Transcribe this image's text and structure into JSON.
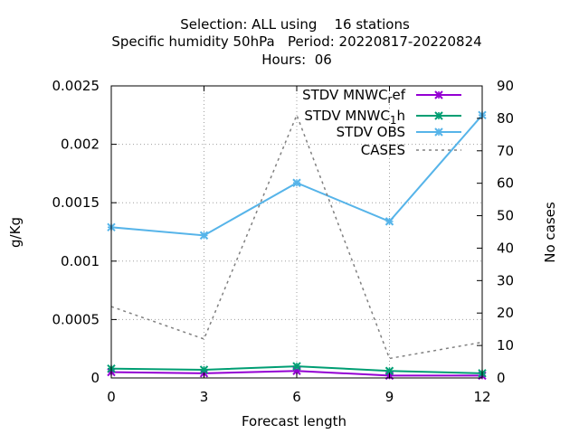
{
  "chart_data": {
    "type": "line",
    "title_lines": [
      "Selection: ALL using    16 stations",
      "Specific humidity 50hPa   Period: 20220817-20220824",
      "Hours:  06"
    ],
    "xlabel": "Forecast length",
    "ylabel": "g/Kg",
    "y2label": "No cases",
    "x": [
      0,
      3,
      6,
      9,
      12
    ],
    "xlim": [
      0,
      12
    ],
    "ylim": [
      0,
      0.0025
    ],
    "y2lim": [
      0,
      90
    ],
    "x_ticks": [
      "0",
      "3",
      "6",
      "9",
      "12"
    ],
    "y_ticks": [
      {
        "v": 0,
        "label": "0"
      },
      {
        "v": 0.0005,
        "label": "0.0005"
      },
      {
        "v": 0.001,
        "label": "0.001"
      },
      {
        "v": 0.0015,
        "label": "0.0015"
      },
      {
        "v": 0.002,
        "label": "0.002"
      },
      {
        "v": 0.0025,
        "label": "0.0025"
      }
    ],
    "y2_ticks": [
      "0",
      "10",
      "20",
      "30",
      "40",
      "50",
      "60",
      "70",
      "80",
      "90"
    ],
    "grid": true,
    "legend_position": "top-right",
    "series": [
      {
        "name": "STDV MNWC_ref",
        "legend_main": "STDV MNWC",
        "legend_sub": "r",
        "legend_tail": "ef",
        "color": "#9400d3",
        "axis": "y",
        "style": "solid",
        "marker": "x",
        "values": [
          5e-05,
          4e-05,
          6e-05,
          2e-05,
          2e-05
        ]
      },
      {
        "name": "STDV MNWC_1h",
        "legend_main": "STDV MNWC",
        "legend_sub": "1",
        "legend_tail": "h",
        "color": "#009e73",
        "axis": "y",
        "style": "solid",
        "marker": "x",
        "values": [
          8e-05,
          7e-05,
          0.0001,
          6e-05,
          4e-05
        ]
      },
      {
        "name": "STDV OBS",
        "legend_main": "STDV OBS",
        "legend_sub": "",
        "legend_tail": "",
        "color": "#56b4e9",
        "axis": "y",
        "style": "solid",
        "marker": "x",
        "values": [
          0.00129,
          0.00122,
          0.00167,
          0.00134,
          0.00225
        ]
      },
      {
        "name": "CASES",
        "legend_main": "CASES",
        "legend_sub": "",
        "legend_tail": "",
        "color": "#808080",
        "axis": "y2",
        "style": "dashed",
        "marker": "none",
        "values": [
          22,
          12,
          81,
          6,
          11
        ]
      }
    ]
  }
}
